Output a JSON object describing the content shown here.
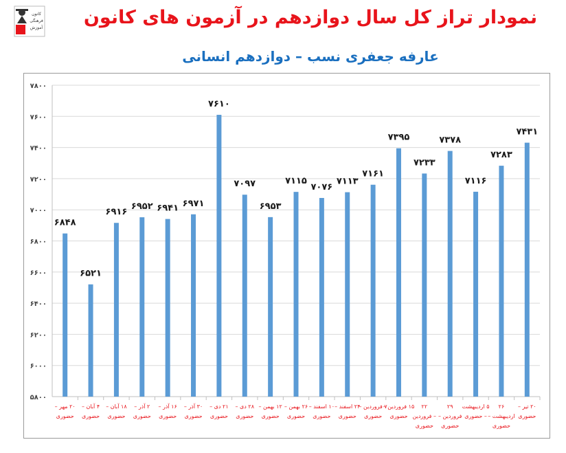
{
  "title": "نمودار تراز کل سال دوازدهم در آزمون های کانون",
  "subtitle": "عارفه جعفری نسب – دوازدهم انسانی",
  "logo": {
    "lines": [
      "کانون",
      "فرهنگی",
      "آموزش"
    ]
  },
  "colors": {
    "bar": "#5b9bd5",
    "title": "#e8141b",
    "subtitle": "#1a6fbf",
    "tick": "#e8141b",
    "grid": "#d9d9d9"
  },
  "chart_data": {
    "type": "bar",
    "ylim": [
      5800,
      7800
    ],
    "yticks": [
      "۵۸۰۰",
      "۶۰۰۰",
      "۶۲۰۰",
      "۶۴۰۰",
      "۶۶۰۰",
      "۶۸۰۰",
      "۷۰۰۰",
      "۷۲۰۰",
      "۷۴۰۰",
      "۷۶۰۰",
      "۷۸۰۰"
    ],
    "ytick_values": [
      5800,
      6000,
      6200,
      6400,
      6600,
      6800,
      7000,
      7200,
      7400,
      7600,
      7800
    ],
    "grid": true,
    "categories": [
      [
        "۲۰ مهر –",
        "حضوری"
      ],
      [
        "۴ آبان –",
        "حضوری"
      ],
      [
        "۱۸ آبان –",
        "حضوری"
      ],
      [
        "۲ آذر –",
        "حضوری"
      ],
      [
        "۱۶ آذر –",
        "حضوری"
      ],
      [
        "۳۰ آذر –",
        "حضوری"
      ],
      [
        "۲۱ دی –",
        "حضوری"
      ],
      [
        "۲۸ دی –",
        "حضوری"
      ],
      [
        "۱۲ بهمن –",
        "حضوری"
      ],
      [
        "۲۶ بهمن –",
        "حضوری"
      ],
      [
        "۱۰ اسفند –",
        "حضوری"
      ],
      [
        "۲۴ اسفند –",
        "حضوری"
      ],
      [
        "۷ فروردین –",
        "حضوری"
      ],
      [
        "۱۵ فروردین –",
        "حضوری"
      ],
      [
        "۲۲",
        "– فروردین",
        "حضوری"
      ],
      [
        "۲۹",
        "فروردین –",
        "حضوری"
      ],
      [
        "۵ اردیبهشت",
        "– حضوری"
      ],
      [
        "۲۶",
        "اردیبهشت –",
        "حضوری"
      ],
      [
        "۲۰ تیر –",
        "حضوری"
      ]
    ],
    "values": [
      6848,
      6521,
      6916,
      6952,
      6941,
      6971,
      7610,
      7097,
      6953,
      7115,
      7076,
      7113,
      7161,
      7395,
      7233,
      7378,
      7116,
      7283,
      7431
    ],
    "value_labels": [
      "۶۸۴۸",
      "۶۵۲۱",
      "۶۹۱۶",
      "۶۹۵۲",
      "۶۹۴۱",
      "۶۹۷۱",
      "۷۶۱۰",
      "۷۰۹۷",
      "۶۹۵۳",
      "۷۱۱۵",
      "۷۰۷۶",
      "۷۱۱۳",
      "۷۱۶۱",
      "۷۳۹۵",
      "۷۲۳۳",
      "۷۳۷۸",
      "۷۱۱۶",
      "۷۲۸۳",
      "۷۴۳۱"
    ]
  }
}
